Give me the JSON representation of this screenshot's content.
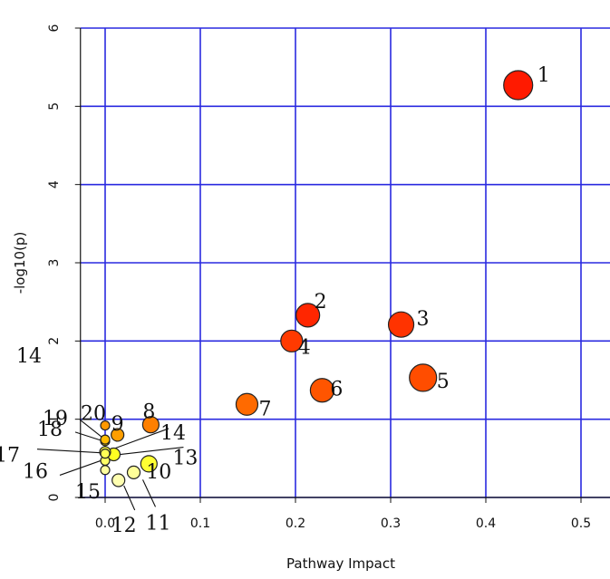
{
  "chart_data": {
    "type": "scatter",
    "title": "",
    "xlabel": "Pathway Impact",
    "ylabel": "-log10(p)",
    "xlim": [
      -0.025,
      0.515
    ],
    "ylim": [
      0,
      6
    ],
    "xticks": [
      "0.0",
      "0.1",
      "0.2",
      "0.3",
      "0.4",
      "0.5"
    ],
    "xtick_values": [
      0,
      0.1,
      0.2,
      0.3,
      0.4,
      0.5
    ],
    "yticks": [
      "0",
      "1",
      "2",
      "3",
      "4",
      "5",
      "6"
    ],
    "ytick_values": [
      0,
      1,
      2,
      3,
      4,
      5,
      6
    ],
    "grid": true,
    "grid_color": "#2a2ae0",
    "stray_text": "14",
    "points": [
      {
        "label": "1",
        "x": 0.434,
        "y": 5.27,
        "color": "#ff1a00"
      },
      {
        "label": "2",
        "x": 0.213,
        "y": 2.33,
        "color": "#ff2600"
      },
      {
        "label": "3",
        "x": 0.311,
        "y": 2.21,
        "color": "#ff3300"
      },
      {
        "label": "4",
        "x": 0.196,
        "y": 2.0,
        "color": "#ff3a00"
      },
      {
        "label": "5",
        "x": 0.334,
        "y": 1.53,
        "color": "#ff4d00"
      },
      {
        "label": "6",
        "x": 0.228,
        "y": 1.37,
        "color": "#ff5500"
      },
      {
        "label": "7",
        "x": 0.149,
        "y": 1.19,
        "color": "#ff6a00"
      },
      {
        "label": "8",
        "x": 0.048,
        "y": 0.93,
        "color": "#ff8000"
      },
      {
        "label": "9",
        "x": 0.013,
        "y": 0.8,
        "color": "#ff9e00"
      },
      {
        "label": "10",
        "x": 0.046,
        "y": 0.43,
        "color": "#ffff33"
      },
      {
        "label": "11",
        "x": 0.03,
        "y": 0.32,
        "color": "#ffff99"
      },
      {
        "label": "12",
        "x": 0.014,
        "y": 0.22,
        "color": "#ffffb0"
      },
      {
        "label": "13",
        "x": 0.009,
        "y": 0.55,
        "color": "#ffff22"
      },
      {
        "label": "14",
        "x": 0.0,
        "y": 0.58,
        "color": "#ffff44"
      },
      {
        "label": "15",
        "x": 0.0,
        "y": 0.35,
        "color": "#ffffa0"
      },
      {
        "label": "16",
        "x": 0.0,
        "y": 0.47,
        "color": "#ffff66"
      },
      {
        "label": "17",
        "x": 0.0,
        "y": 0.56,
        "color": "#ffff55"
      },
      {
        "label": "18",
        "x": 0.0,
        "y": 0.72,
        "color": "#ffdd00"
      },
      {
        "label": "19",
        "x": 0.0,
        "y": 0.74,
        "color": "#ffbb00"
      },
      {
        "label": "20",
        "x": 0.0,
        "y": 0.92,
        "color": "#ff9900"
      }
    ]
  }
}
